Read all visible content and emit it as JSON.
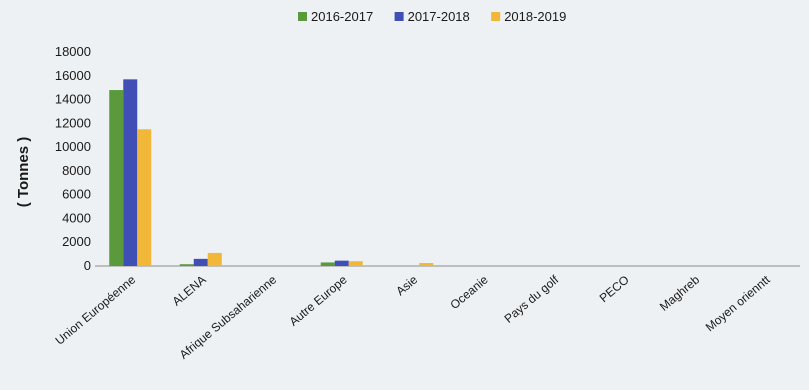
{
  "chart_data": {
    "type": "bar",
    "title": "",
    "xlabel": "",
    "ylabel": "( Tonnes )",
    "ylim": [
      0,
      18000
    ],
    "yticks": [
      0,
      2000,
      4000,
      6000,
      8000,
      10000,
      12000,
      14000,
      16000,
      18000
    ],
    "grid": false,
    "legend_position": "top",
    "categories": [
      "Union Européenne",
      "ALENA",
      "Afrique Subsaharienne",
      "Autre Europe",
      "Asie",
      "Oceanie",
      "Pays du golf",
      "PECO",
      "Maghreb",
      "Moyen orienntt"
    ],
    "series": [
      {
        "name": "2016-2017",
        "color": "#5b9a3c",
        "values": [
          14800,
          150,
          0,
          300,
          0,
          0,
          0,
          0,
          0,
          0
        ]
      },
      {
        "name": "2017-2018",
        "color": "#3f4fb5",
        "values": [
          15700,
          600,
          0,
          450,
          0,
          0,
          0,
          0,
          0,
          0
        ]
      },
      {
        "name": "2018-2019",
        "color": "#f0b739",
        "values": [
          11500,
          1100,
          0,
          400,
          250,
          0,
          0,
          0,
          0,
          0
        ]
      }
    ]
  }
}
